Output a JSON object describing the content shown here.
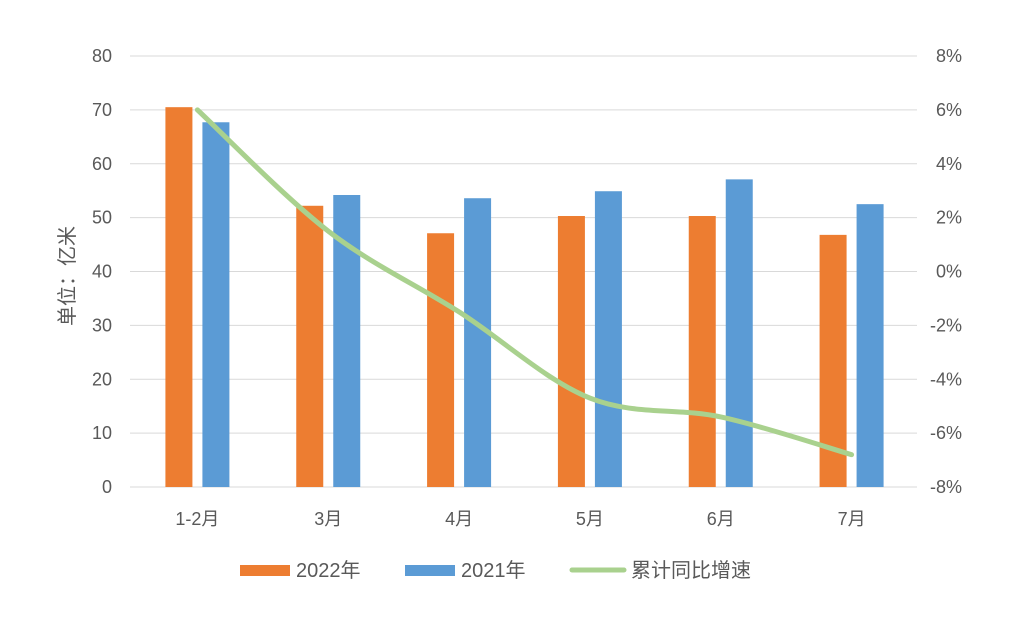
{
  "chart_data": {
    "type": "bar",
    "categories": [
      "1-2月",
      "3月",
      "4月",
      "5月",
      "6月",
      "7月"
    ],
    "series": [
      {
        "name": "2022年",
        "type": "bar",
        "axis": "left",
        "color": "#ED7D31",
        "values": [
          70.5,
          52.2,
          47.1,
          50.3,
          50.3,
          46.8
        ]
      },
      {
        "name": "2021年",
        "type": "bar",
        "axis": "left",
        "color": "#5B9BD5",
        "values": [
          67.7,
          54.2,
          53.6,
          54.9,
          57.1,
          52.5
        ]
      },
      {
        "name": "累计同比增速",
        "type": "line",
        "axis": "right",
        "color": "#A9D18E",
        "values": [
          6.0,
          1.5,
          -1.5,
          -4.7,
          -5.4,
          -6.8
        ]
      }
    ],
    "ylabel": "单位：亿米",
    "ylim": [
      0,
      80
    ],
    "y_ticks": [
      0,
      10,
      20,
      30,
      40,
      50,
      60,
      70,
      80
    ],
    "y2lim": [
      -8,
      8
    ],
    "y2_ticks": [
      -8,
      -6,
      -4,
      -2,
      0,
      2,
      4,
      6,
      8
    ],
    "y2_tick_labels": [
      "-8%",
      "-6%",
      "-4%",
      "-2%",
      "0%",
      "2%",
      "4%",
      "6%",
      "8%"
    ],
    "grid": true,
    "legend": "bottom"
  },
  "colors": {
    "gridline": "#D9D9D9",
    "text": "#595959"
  }
}
